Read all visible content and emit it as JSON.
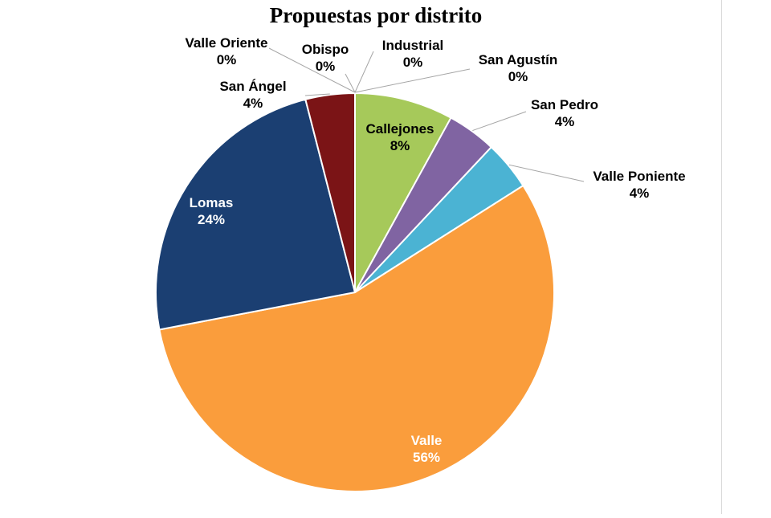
{
  "chart_data": {
    "type": "pie",
    "title": "Propuestas por distrito",
    "slices": [
      {
        "name": "Industrial",
        "value": 0,
        "label": "0%",
        "color": "#5b9bd5"
      },
      {
        "name": "San Agustín",
        "value": 0,
        "label": "0%",
        "color": "#ed7d31"
      },
      {
        "name": "Callejones",
        "value": 8,
        "label": "8%",
        "color": "#a6c95a"
      },
      {
        "name": "San Pedro",
        "value": 4,
        "label": "4%",
        "color": "#8064a2"
      },
      {
        "name": "Valle Poniente",
        "value": 4,
        "label": "4%",
        "color": "#4bb3d3"
      },
      {
        "name": "Valle",
        "value": 56,
        "label": "56%",
        "color": "#fa9d3c"
      },
      {
        "name": "Lomas",
        "value": 24,
        "label": "24%",
        "color": "#1b3f72"
      },
      {
        "name": "San Ángel",
        "value": 4,
        "label": "4%",
        "color": "#7b1416"
      },
      {
        "name": "Valle Oriente",
        "value": 0,
        "label": "0%",
        "color": "#3d7a3d"
      },
      {
        "name": "Obispo",
        "value": 0,
        "label": "0%",
        "color": "#9e480e"
      }
    ]
  }
}
